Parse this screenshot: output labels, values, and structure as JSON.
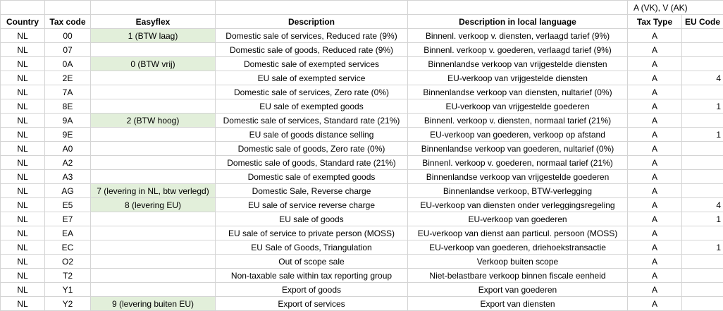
{
  "note": "A (VK), V (AK)",
  "table": {
    "columns": [
      "Country",
      "Tax code",
      "Easyflex",
      "Description",
      "Description in local language",
      "Tax Type",
      "EU Code"
    ],
    "rows": [
      {
        "country": "NL",
        "tax_code": "00",
        "easyflex": "1 (BTW laag)",
        "description": "Domestic sale of services, Reduced rate (9%)",
        "local": "Binnenl. verkoop v. diensten, verlaagd tarief (9%)",
        "tax_type": "A"
      },
      {
        "country": "NL",
        "tax_code": "07",
        "description": "Domestic sale of goods, Reduced rate (9%)",
        "local": "Binnenl. verkoop v. goederen, verlaagd tarief (9%)",
        "tax_type": "A"
      },
      {
        "country": "NL",
        "tax_code": "0A",
        "easyflex": "0 (BTW vrij)",
        "description": "Domestic sale of exempted services",
        "local": "Binnenlandse verkoop van vrijgestelde diensten",
        "tax_type": "A"
      },
      {
        "country": "NL",
        "tax_code": "2E",
        "description": "EU sale of exempted service",
        "local": "EU-verkoop van vrijgestelde diensten",
        "tax_type": "A",
        "eu_code": 4
      },
      {
        "country": "NL",
        "tax_code": "7A",
        "description": "Domestic sale of services, Zero rate (0%)",
        "local": "Binnenlandse verkoop van diensten, nultarief (0%)",
        "tax_type": "A"
      },
      {
        "country": "NL",
        "tax_code": "8E",
        "description": "EU sale of exempted goods",
        "local": "EU-verkoop van vrijgestelde goederen",
        "tax_type": "A",
        "eu_code": 1
      },
      {
        "country": "NL",
        "tax_code": "9A",
        "easyflex": "2 (BTW hoog)",
        "description": "Domestic sale of services, Standard rate (21%)",
        "local": "Binnenl. verkoop v. diensten, normaal tarief (21%)",
        "tax_type": "A"
      },
      {
        "country": "NL",
        "tax_code": "9E",
        "description": "EU sale of goods distance selling",
        "local": "EU-verkoop van goederen, verkoop op afstand",
        "tax_type": "A",
        "eu_code": 1
      },
      {
        "country": "NL",
        "tax_code": "A0",
        "description": "Domestic sale of goods, Zero rate (0%)",
        "local": "Binnenlandse verkoop van goederen, nultarief (0%)",
        "tax_type": "A"
      },
      {
        "country": "NL",
        "tax_code": "A2",
        "description": "Domestic sale of goods, Standard rate (21%)",
        "local": "Binnenl. verkoop v. goederen, normaal tarief (21%)",
        "tax_type": "A"
      },
      {
        "country": "NL",
        "tax_code": "A3",
        "description": "Domestic sale of exempted goods",
        "local": "Binnenlandse verkoop van vrijgestelde goederen",
        "tax_type": "A"
      },
      {
        "country": "NL",
        "tax_code": "AG",
        "easyflex": "7 (levering in NL, btw verlegd)",
        "description": "Domestic Sale, Reverse charge",
        "local": "Binnenlandse verkoop, BTW-verlegging",
        "tax_type": "A"
      },
      {
        "country": "NL",
        "tax_code": "E5",
        "easyflex": "8 (levering EU)",
        "description": "EU sale of service reverse charge",
        "local": "EU-verkoop van diensten onder verleggingsregeling",
        "tax_type": "A",
        "eu_code": 4
      },
      {
        "country": "NL",
        "tax_code": "E7",
        "description": "EU sale of goods",
        "local": "EU-verkoop van goederen",
        "tax_type": "A",
        "eu_code": 1
      },
      {
        "country": "NL",
        "tax_code": "EA",
        "description": "EU sale of service to private person (MOSS)",
        "local": "EU-verkoop van dienst aan particul. persoon (MOSS)",
        "tax_type": "A"
      },
      {
        "country": "NL",
        "tax_code": "EC",
        "description": "EU Sale of Goods, Triangulation",
        "local": "EU-verkoop van goederen, driehoekstransactie",
        "tax_type": "A",
        "eu_code": 1
      },
      {
        "country": "NL",
        "tax_code": "O2",
        "description": "Out of scope sale",
        "local": "Verkoop buiten scope",
        "tax_type": "A"
      },
      {
        "country": "NL",
        "tax_code": "T2",
        "description": "Non-taxable sale within tax reporting group",
        "local": "Niet-belastbare verkoop binnen fiscale eenheid",
        "tax_type": "A"
      },
      {
        "country": "NL",
        "tax_code": "Y1",
        "description": "Export of goods",
        "local": "Export van goederen",
        "tax_type": "A"
      },
      {
        "country": "NL",
        "tax_code": "Y2",
        "easyflex": "9 (levering buiten EU)",
        "description": "Export of services",
        "local": "Export van diensten",
        "tax_type": "A"
      }
    ]
  }
}
